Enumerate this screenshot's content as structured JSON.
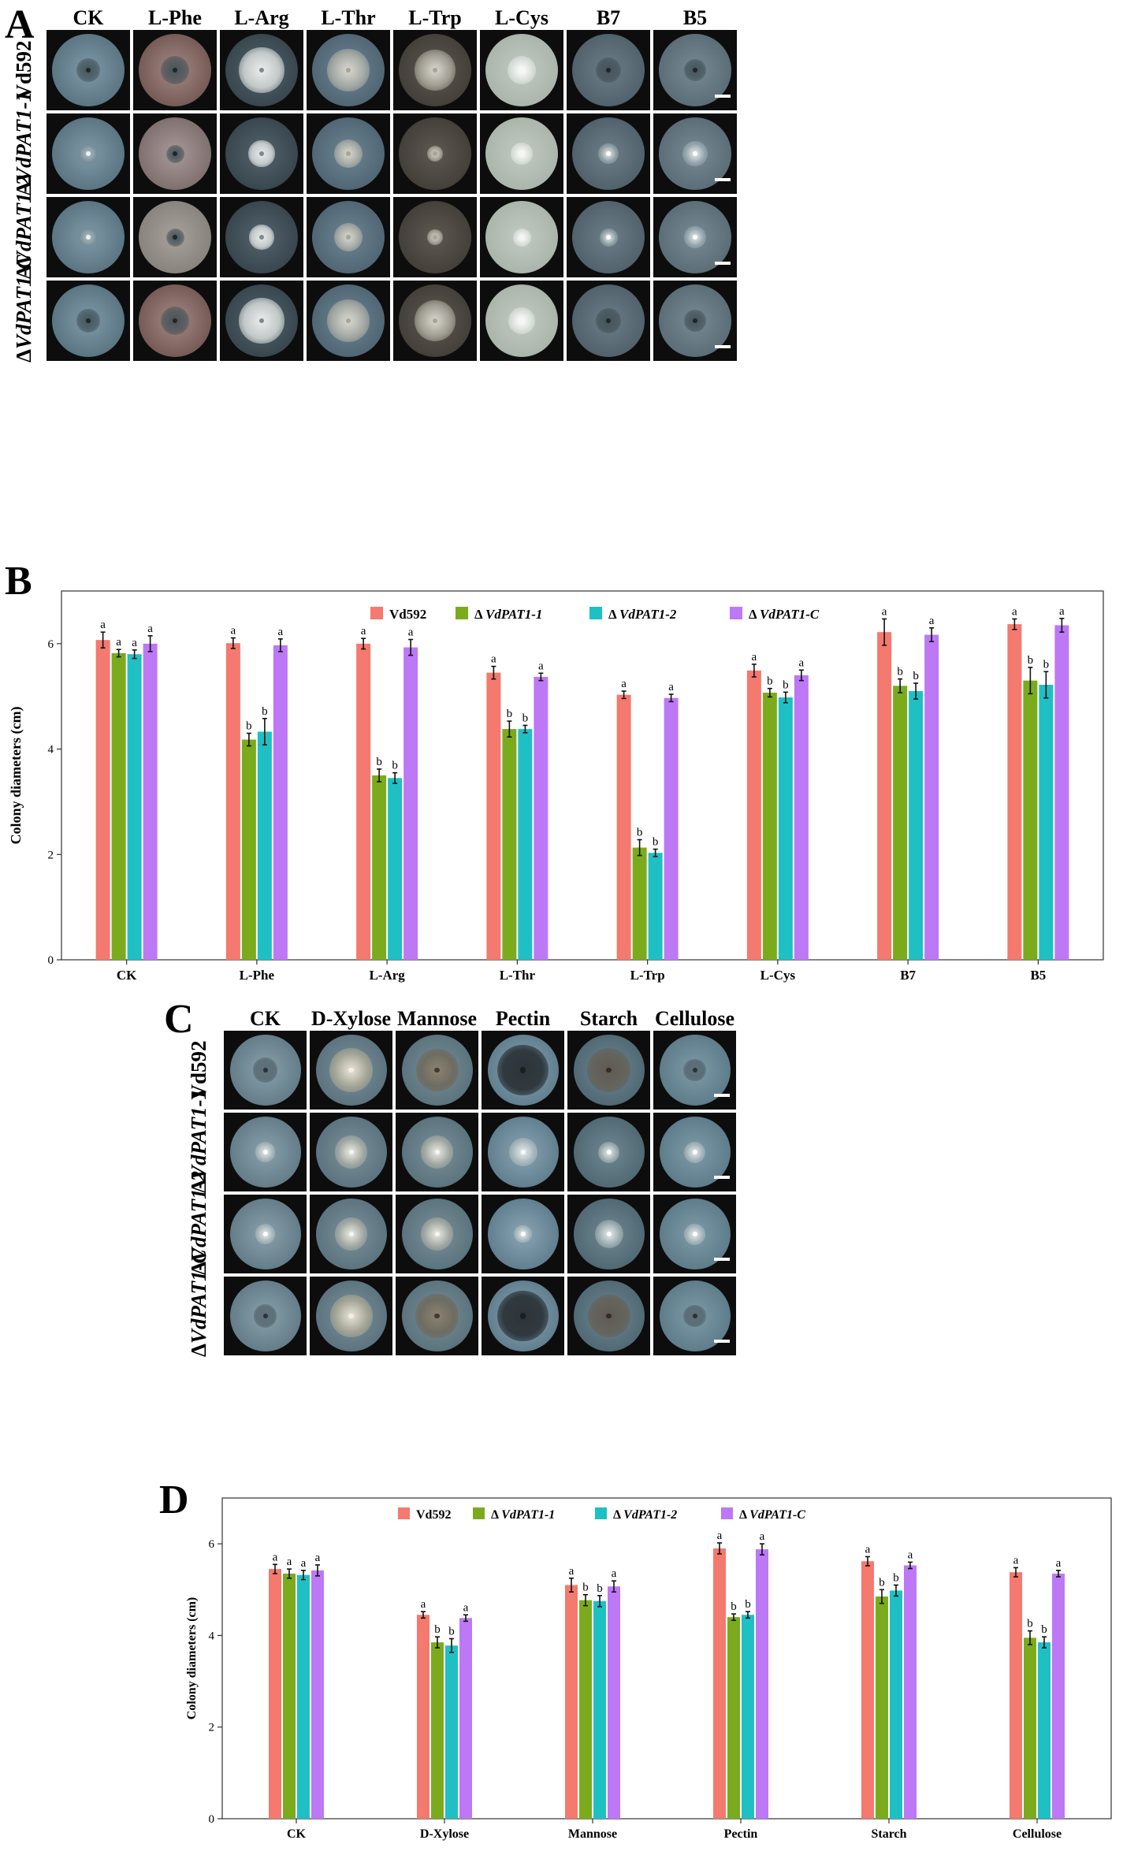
{
  "panels": {
    "A": "A",
    "B": "B",
    "C": "C",
    "D": "D"
  },
  "figure_A": {
    "columns": [
      "CK",
      "L-Phe",
      "L-Arg",
      "L-Thr",
      "L-Trp",
      "L-Cys",
      "B7",
      "B5"
    ],
    "rows": [
      "Vd592",
      "ΔVdPAT1-1",
      "ΔVdPAT1-2",
      "ΔVdPAT1-C"
    ]
  },
  "figure_C": {
    "columns": [
      "CK",
      "D-Xylose",
      "Mannose",
      "Pectin",
      "Starch",
      "Cellulose"
    ],
    "rows": [
      "Vd592",
      "ΔVdPAT1-1",
      "ΔVdPAT1-2",
      "ΔVdPAT1-C"
    ]
  },
  "colors": {
    "Vd592": "#f4796e",
    "VdPAT1_1": "#7bab1d",
    "VdPAT1_2": "#1ec0c4",
    "VdPAT1_C": "#bd78f5"
  },
  "chart_data": [
    {
      "id": "B",
      "type": "bar",
      "ylabel": "Colony diameters (cm)",
      "xlabel": "",
      "ylim": [
        0,
        7
      ],
      "yticks": [
        "0",
        "2",
        "4",
        "6"
      ],
      "legend_position": "top-center",
      "categories": [
        "CK",
        "L-Phe",
        "L-Arg",
        "L-Thr",
        "L-Trp",
        "L-Cys",
        "B7",
        "B5"
      ],
      "series": [
        {
          "name": "Vd592",
          "prefix": "",
          "italic": "",
          "values": [
            6.07,
            6.01,
            6.0,
            5.45,
            5.03,
            5.49,
            6.22,
            6.37
          ],
          "errors": [
            0.15,
            0.1,
            0.1,
            0.12,
            0.07,
            0.12,
            0.25,
            0.1
          ],
          "letters": [
            "a",
            "a",
            "a",
            "a",
            "a",
            "a",
            "a",
            "a"
          ]
        },
        {
          "name": "Δ VdPAT1-1",
          "prefix": "Δ ",
          "italic": "VdPAT1-1",
          "values": [
            5.82,
            4.18,
            3.5,
            4.38,
            2.13,
            5.07,
            5.2,
            5.3
          ],
          "errors": [
            0.07,
            0.12,
            0.12,
            0.15,
            0.15,
            0.08,
            0.13,
            0.25
          ],
          "letters": [
            "a",
            "b",
            "b",
            "b",
            "b",
            "b",
            "b",
            "b"
          ]
        },
        {
          "name": "Δ VdPAT1-2",
          "prefix": "Δ ",
          "italic": "VdPAT1-2",
          "values": [
            5.8,
            4.33,
            3.45,
            4.38,
            2.03,
            4.98,
            5.1,
            5.22
          ],
          "errors": [
            0.08,
            0.25,
            0.1,
            0.07,
            0.07,
            0.1,
            0.15,
            0.25
          ],
          "letters": [
            "a",
            "b",
            "b",
            "b",
            "b",
            "b",
            "b",
            "b"
          ]
        },
        {
          "name": "Δ VdPAT1-C",
          "prefix": "Δ ",
          "italic": "VdPAT1-C",
          "values": [
            6.0,
            5.97,
            5.93,
            5.37,
            4.97,
            5.4,
            6.17,
            6.35
          ],
          "errors": [
            0.15,
            0.12,
            0.15,
            0.07,
            0.07,
            0.1,
            0.13,
            0.13
          ],
          "letters": [
            "a",
            "a",
            "a",
            "a",
            "a",
            "a",
            "a",
            "a"
          ]
        }
      ]
    },
    {
      "id": "D",
      "type": "bar",
      "ylabel": "Colony diameters (cm)",
      "xlabel": "",
      "ylim": [
        0,
        7
      ],
      "yticks": [
        "0",
        "2",
        "4",
        "6"
      ],
      "legend_position": "top-center",
      "categories": [
        "CK",
        "D-Xylose",
        "Mannose",
        "Pectin",
        "Starch",
        "Cellulose"
      ],
      "series": [
        {
          "name": "Vd592",
          "prefix": "",
          "italic": "",
          "values": [
            5.45,
            4.45,
            5.1,
            5.9,
            5.62,
            5.38
          ],
          "errors": [
            0.1,
            0.07,
            0.15,
            0.12,
            0.1,
            0.1
          ],
          "letters": [
            "a",
            "a",
            "a",
            "a",
            "a",
            "a"
          ]
        },
        {
          "name": "Δ VdPAT1-1",
          "prefix": "Δ ",
          "italic": "VdPAT1-1",
          "values": [
            5.35,
            3.85,
            4.77,
            4.4,
            4.85,
            3.95
          ],
          "errors": [
            0.1,
            0.12,
            0.12,
            0.07,
            0.15,
            0.15
          ],
          "letters": [
            "a",
            "b",
            "b",
            "b",
            "b",
            "b"
          ]
        },
        {
          "name": "Δ VdPAT1-2",
          "prefix": "Δ ",
          "italic": "VdPAT1-2",
          "values": [
            5.32,
            3.78,
            4.75,
            4.45,
            4.98,
            3.85
          ],
          "errors": [
            0.1,
            0.15,
            0.12,
            0.07,
            0.12,
            0.12
          ],
          "letters": [
            "a",
            "b",
            "b",
            "b",
            "b",
            "b"
          ]
        },
        {
          "name": "Δ VdPAT1-C",
          "prefix": "Δ ",
          "italic": "VdPAT1-C",
          "values": [
            5.42,
            4.38,
            5.07,
            5.88,
            5.53,
            5.35
          ],
          "errors": [
            0.12,
            0.07,
            0.12,
            0.12,
            0.07,
            0.07
          ],
          "letters": [
            "a",
            "a",
            "a",
            "a",
            "a",
            "a"
          ]
        }
      ]
    }
  ]
}
